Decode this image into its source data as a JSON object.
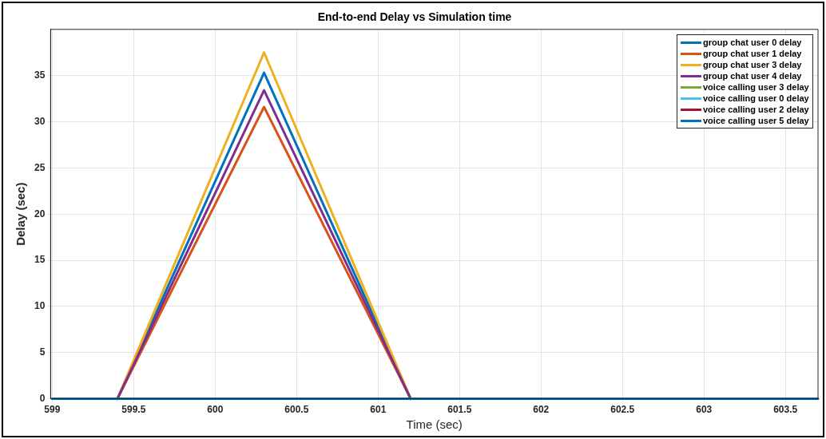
{
  "chart_data": {
    "type": "line",
    "title": "End-to-end Delay vs Simulation time",
    "xlabel": "Time (sec)",
    "ylabel": "Delay (sec)",
    "series": [
      {
        "name": "group chat user 0 delay",
        "color": "#0072bd",
        "x": [
          599.4,
          600.3,
          601.2
        ],
        "values": [
          0,
          35.3,
          0
        ]
      },
      {
        "name": "group chat user 1 delay",
        "color": "#d95319",
        "x": [
          599.4,
          600.3,
          601.2
        ],
        "values": [
          0,
          31.6,
          0
        ]
      },
      {
        "name": "group chat user 3 delay",
        "color": "#edb120",
        "x": [
          599.4,
          600.3,
          601.2
        ],
        "values": [
          0,
          37.5,
          0
        ]
      },
      {
        "name": "group chat user 4 delay",
        "color": "#7e2f8e",
        "x": [
          599.4,
          600.3,
          601.2
        ],
        "values": [
          0,
          33.4,
          0
        ]
      },
      {
        "name": "voice calling user 3 delay",
        "color": "#77ac30",
        "values": [
          null
        ]
      },
      {
        "name": "voice calling user 0 delay",
        "color": "#4dbeee",
        "values": [
          null
        ]
      },
      {
        "name": "voice calling user 2 delay",
        "color": "#a2142f",
        "values": [
          null
        ]
      },
      {
        "name": "voice calling user 5 delay",
        "color": "#0072bd",
        "x": [
          599,
          603.7
        ],
        "values": [
          0,
          0
        ]
      }
    ],
    "xlim": [
      598.99,
      603.7
    ],
    "xticks": [
      599,
      599.5,
      600,
      600.5,
      601,
      601.5,
      602,
      602.5,
      603,
      603.5
    ],
    "ylim": [
      0,
      40
    ],
    "yticks": [
      0,
      5,
      10,
      15,
      20,
      25,
      30,
      35
    ],
    "grid": true,
    "legend": "top right",
    "marker": "none",
    "line_style": "solid"
  }
}
